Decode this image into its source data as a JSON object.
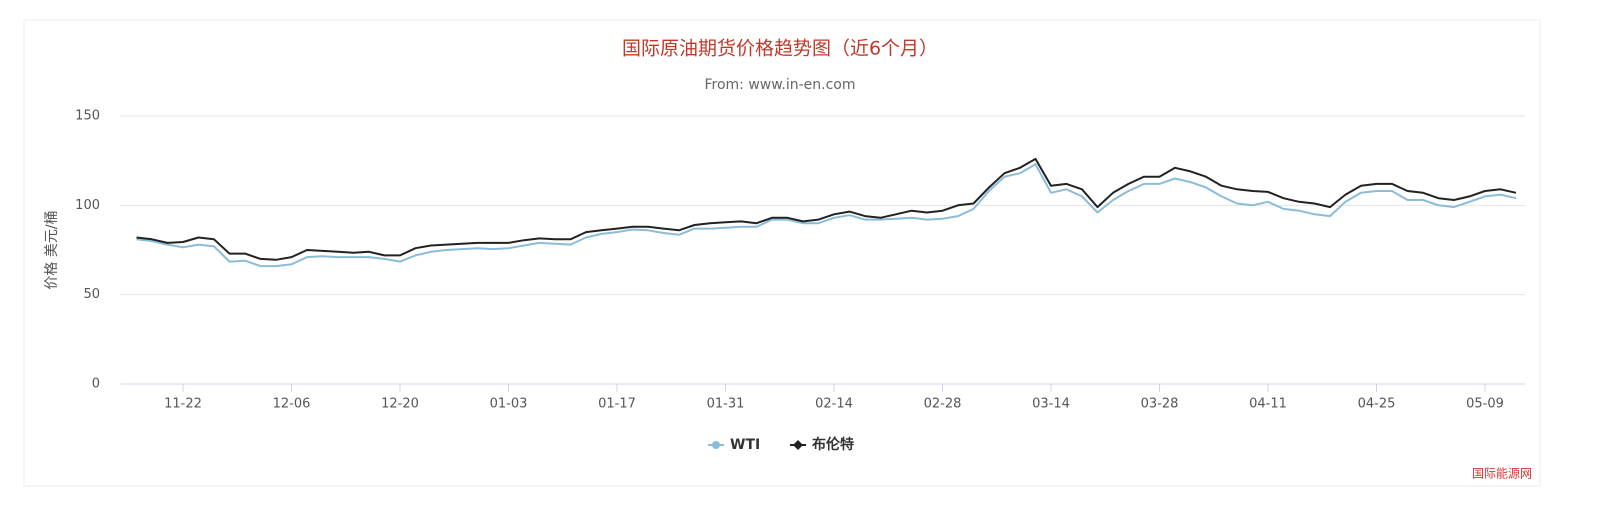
{
  "chart_data": {
    "type": "line",
    "title": "国际原油期货价格趋势图（近6个月）",
    "subtitle": "From: www.in-en.com",
    "y_label": "价格 美元/桶",
    "watermark": "国际能源网",
    "categories": [
      null,
      null,
      null,
      "11-22",
      null,
      null,
      null,
      null,
      null,
      null,
      "12-06",
      null,
      null,
      null,
      null,
      null,
      null,
      "12-20",
      null,
      null,
      null,
      null,
      null,
      null,
      "01-03",
      null,
      null,
      null,
      null,
      null,
      null,
      "01-17",
      null,
      null,
      null,
      null,
      null,
      null,
      "01-31",
      null,
      null,
      null,
      null,
      null,
      null,
      "02-14",
      null,
      null,
      null,
      null,
      null,
      null,
      "02-28",
      null,
      null,
      null,
      null,
      null,
      null,
      "03-14",
      null,
      null,
      null,
      null,
      null,
      null,
      "03-28",
      null,
      null,
      null,
      null,
      null,
      null,
      "04-11",
      null,
      null,
      null,
      null,
      null,
      null,
      "04-25",
      null,
      null,
      null,
      null,
      null,
      null,
      "05-09",
      null,
      null
    ],
    "series": [
      {
        "name": "WTI",
        "color": "#8bbcd9",
        "marker": "circle",
        "values": [
          81,
          80,
          78,
          76.5,
          78,
          77,
          68.5,
          69,
          66,
          66,
          67,
          71,
          71.5,
          71,
          71,
          71,
          70,
          68.5,
          72,
          74,
          75,
          75.5,
          76,
          75.5,
          76,
          77.5,
          79,
          78.5,
          78,
          82,
          84,
          85,
          86.5,
          86,
          84.5,
          83.5,
          87,
          87,
          87.5,
          88,
          88,
          92,
          92,
          90,
          90,
          93,
          94.5,
          92,
          92,
          92.5,
          93,
          92,
          92.5,
          94,
          98,
          108,
          116,
          118,
          123,
          107,
          109,
          105,
          96,
          103,
          108,
          112,
          112,
          115,
          113,
          110,
          105,
          101,
          100,
          102,
          98,
          97,
          95,
          94,
          102,
          107,
          108,
          108,
          103,
          103,
          100,
          99,
          102,
          105,
          106,
          104
        ]
      },
      {
        "name": "布伦特",
        "color": "#222222",
        "marker": "diamond",
        "values": [
          82,
          81,
          79,
          79.5,
          82,
          81,
          73,
          73,
          70,
          69.5,
          71,
          75,
          74.5,
          74,
          73.5,
          74,
          72,
          72,
          76,
          77.5,
          78,
          78.5,
          79,
          79,
          79,
          80.5,
          81.5,
          81,
          81,
          85,
          86,
          87,
          88,
          88,
          87,
          86,
          89,
          90,
          90.5,
          91,
          90,
          93,
          93,
          91,
          92,
          95,
          96.5,
          94,
          93,
          95,
          97,
          96,
          97,
          100,
          101,
          110,
          118,
          121,
          126,
          111,
          112,
          109,
          99,
          107,
          112,
          116,
          116,
          121,
          119,
          116,
          111,
          109,
          108,
          107.5,
          104,
          102,
          101,
          99,
          106,
          111,
          112,
          112,
          108,
          107,
          104,
          103,
          105,
          108,
          109,
          107
        ]
      }
    ],
    "ylim": [
      0,
      150
    ],
    "yticks": [
      0,
      50,
      100,
      150
    ],
    "grid": true,
    "legend": "bottom"
  }
}
